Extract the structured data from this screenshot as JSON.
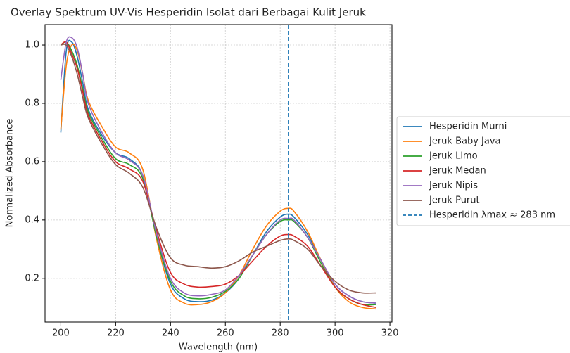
{
  "chart_data": {
    "type": "line",
    "title": "Overlay Spektrum UV-Vis Hesperidin Isolat dari Berbagai Kulit Jeruk",
    "xlabel": "Wavelength (nm)",
    "ylabel": "Normalized Absorbance",
    "x": [
      200,
      202,
      204,
      206,
      208,
      210,
      215,
      220,
      225,
      230,
      235,
      240,
      245,
      250,
      255,
      260,
      265,
      270,
      275,
      280,
      283,
      285,
      290,
      295,
      300,
      305,
      310,
      315
    ],
    "series": [
      {
        "name": "Hesperidin Murni",
        "color": "#1f77b4",
        "values": [
          0.7,
          0.98,
          1.01,
          0.96,
          0.87,
          0.78,
          0.69,
          0.63,
          0.61,
          0.55,
          0.34,
          0.18,
          0.13,
          0.12,
          0.125,
          0.15,
          0.2,
          0.28,
          0.36,
          0.41,
          0.42,
          0.41,
          0.35,
          0.26,
          0.18,
          0.14,
          0.12,
          0.115
        ]
      },
      {
        "name": "Jeruk Baby Java",
        "color": "#ff7f0e",
        "values": [
          0.71,
          0.93,
          1.0,
          0.98,
          0.9,
          0.81,
          0.72,
          0.65,
          0.63,
          0.57,
          0.33,
          0.16,
          0.115,
          0.11,
          0.12,
          0.15,
          0.21,
          0.3,
          0.38,
          0.43,
          0.44,
          0.43,
          0.36,
          0.26,
          0.17,
          0.12,
          0.1,
          0.095
        ]
      },
      {
        "name": "Jeruk Limo",
        "color": "#2ca02c",
        "values": [
          1.0,
          1.01,
          0.98,
          0.93,
          0.85,
          0.77,
          0.68,
          0.61,
          0.59,
          0.54,
          0.34,
          0.19,
          0.14,
          0.13,
          0.135,
          0.155,
          0.2,
          0.28,
          0.35,
          0.395,
          0.4,
          0.395,
          0.34,
          0.25,
          0.17,
          0.13,
          0.11,
          0.11
        ]
      },
      {
        "name": "Jeruk Medan",
        "color": "#d62728",
        "values": [
          1.0,
          1.01,
          0.97,
          0.92,
          0.84,
          0.76,
          0.67,
          0.6,
          0.575,
          0.53,
          0.36,
          0.22,
          0.18,
          0.17,
          0.172,
          0.18,
          0.21,
          0.26,
          0.31,
          0.345,
          0.35,
          0.345,
          0.31,
          0.24,
          0.17,
          0.13,
          0.11,
          0.1
        ]
      },
      {
        "name": "Jeruk Nipis",
        "color": "#9467bd",
        "values": [
          0.88,
          1.01,
          1.025,
          0.99,
          0.9,
          0.8,
          0.7,
          0.63,
          0.605,
          0.55,
          0.35,
          0.2,
          0.15,
          0.14,
          0.145,
          0.16,
          0.21,
          0.28,
          0.35,
          0.4,
          0.405,
          0.4,
          0.34,
          0.26,
          0.18,
          0.14,
          0.12,
          0.115
        ]
      },
      {
        "name": "Jeruk Purut",
        "color": "#8c564b",
        "values": [
          1.0,
          1.0,
          0.96,
          0.9,
          0.82,
          0.75,
          0.66,
          0.59,
          0.56,
          0.51,
          0.37,
          0.27,
          0.245,
          0.24,
          0.235,
          0.24,
          0.26,
          0.29,
          0.31,
          0.33,
          0.335,
          0.33,
          0.3,
          0.24,
          0.19,
          0.16,
          0.15,
          0.15
        ]
      }
    ],
    "vlines": [
      {
        "name": "Hesperidin λmax ≈ 283 nm",
        "x": 283,
        "color": "#1f77b4"
      }
    ],
    "xlim": [
      194.25,
      320.75
    ],
    "xticks": [
      200,
      220,
      240,
      260,
      280,
      300,
      320
    ],
    "ylim": [
      0.05,
      1.07
    ],
    "yticks": [
      0.2,
      0.4,
      0.6,
      0.8,
      {
        "value": 1.0,
        "label": "1.0"
      }
    ],
    "grid": true,
    "legend": "right"
  }
}
